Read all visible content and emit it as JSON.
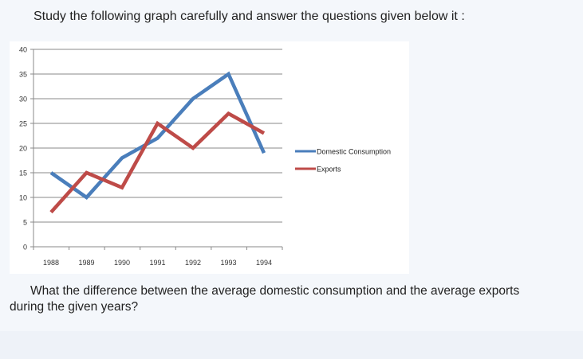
{
  "page": {
    "heading": "Study the following graph carefully and answer the questions given below it :",
    "question_line1": "What the difference between the average domestic consumption and the average exports",
    "question_line2": "during the given years?"
  },
  "chart_data": {
    "type": "line",
    "x": [
      "1988",
      "1989",
      "1990",
      "1991",
      "1992",
      "1993",
      "1994"
    ],
    "y_ticks": [
      0,
      5,
      10,
      15,
      20,
      25,
      30,
      35,
      40
    ],
    "ylim": [
      0,
      40
    ],
    "grid": true,
    "legend_position": "right",
    "series": [
      {
        "name": "Domestic Consumption",
        "color": "#4a7ebb",
        "values": [
          15,
          10,
          18,
          22,
          30,
          35,
          19
        ]
      },
      {
        "name": "Exports",
        "color": "#be4b48",
        "values": [
          7,
          15,
          12,
          25,
          20,
          27,
          23
        ]
      }
    ]
  }
}
